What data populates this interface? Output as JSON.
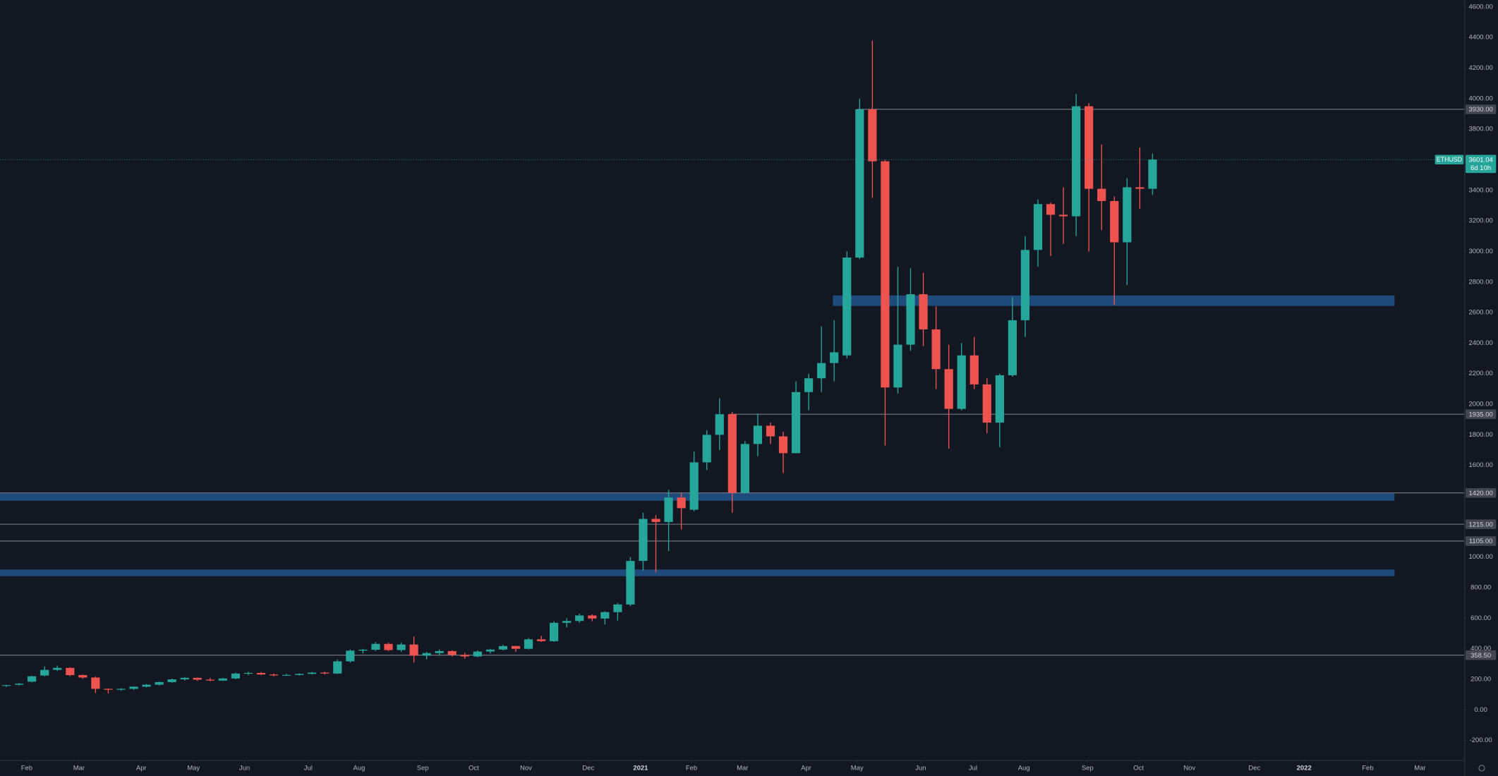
{
  "chart_data": {
    "type": "candlestick",
    "symbol": "ETHUSD",
    "countdown": "6d 10h",
    "up_color": "#26a69a",
    "down_color": "#ef5350",
    "zone_color": "#1f4a7c",
    "open": [
      158,
      165,
      185,
      225,
      262,
      275,
      228,
      212,
      138,
      132,
      138,
      152,
      165,
      182,
      200,
      210,
      198,
      192,
      206,
      238,
      242,
      232,
      226,
      229,
      236,
      244,
      238,
      318,
      388,
      394,
      432,
      392,
      428,
      355,
      372,
      385,
      360,
      350,
      382,
      395,
      418,
      400,
      462,
      450,
      570,
      582,
      618,
      598,
      640,
      690,
      975,
      1250,
      1230,
      1390,
      1310,
      1620,
      1800,
      1935,
      1420,
      1740,
      1860,
      1790,
      1680,
      2080,
      2170,
      2270,
      2320,
      2960,
      3930,
      3590,
      2110,
      2390,
      2720,
      2490,
      2230,
      1970,
      2320,
      2130,
      1880,
      2190,
      2550,
      3010,
      3310,
      3240,
      3230,
      3950,
      3410,
      3330,
      3060,
      3420,
      3410
    ],
    "high": [
      165,
      175,
      225,
      285,
      290,
      280,
      232,
      218,
      140,
      142,
      155,
      170,
      185,
      205,
      215,
      212,
      210,
      210,
      245,
      250,
      248,
      238,
      236,
      240,
      248,
      250,
      330,
      395,
      400,
      445,
      440,
      440,
      480,
      380,
      395,
      390,
      375,
      390,
      400,
      425,
      420,
      470,
      485,
      580,
      600,
      630,
      625,
      645,
      700,
      1000,
      1290,
      1275,
      1440,
      1420,
      1690,
      1830,
      2040,
      1950,
      1760,
      1940,
      1880,
      1820,
      2150,
      2200,
      2510,
      2550,
      3000,
      4000,
      4380,
      3600,
      2900,
      2890,
      2860,
      2640,
      2390,
      2400,
      2440,
      2170,
      2200,
      2700,
      3100,
      3340,
      3320,
      3420,
      4030,
      3970,
      3700,
      3360,
      3480,
      3680,
      3640
    ],
    "low": [
      150,
      160,
      180,
      220,
      255,
      220,
      205,
      110,
      108,
      125,
      132,
      148,
      160,
      178,
      192,
      190,
      188,
      190,
      200,
      228,
      228,
      220,
      222,
      225,
      232,
      232,
      235,
      310,
      370,
      385,
      385,
      380,
      310,
      330,
      355,
      350,
      335,
      345,
      370,
      390,
      380,
      395,
      445,
      445,
      540,
      570,
      580,
      560,
      585,
      680,
      910,
      900,
      1040,
      1180,
      1300,
      1570,
      1700,
      1290,
      1420,
      1660,
      1740,
      1550,
      1680,
      1960,
      2080,
      2150,
      2300,
      2950,
      3350,
      1730,
      2070,
      2350,
      2380,
      2100,
      1710,
      1960,
      2100,
      1810,
      1720,
      2180,
      2440,
      2900,
      2970,
      3050,
      3100,
      3000,
      3140,
      2650,
      2780,
      3280,
      3370
    ],
    "close": [
      162,
      172,
      220,
      262,
      275,
      228,
      212,
      138,
      132,
      138,
      152,
      165,
      182,
      200,
      210,
      198,
      192,
      206,
      238,
      242,
      232,
      226,
      229,
      236,
      244,
      238,
      318,
      388,
      394,
      432,
      392,
      428,
      355,
      372,
      385,
      360,
      350,
      382,
      395,
      418,
      400,
      462,
      450,
      570,
      582,
      618,
      598,
      640,
      690,
      975,
      1250,
      1230,
      1390,
      1320,
      1620,
      1800,
      1935,
      1420,
      1740,
      1860,
      1790,
      1680,
      2080,
      2170,
      2270,
      2340,
      2960,
      3930,
      3590,
      2110,
      2390,
      2720,
      2490,
      2230,
      1970,
      2320,
      2130,
      1880,
      2190,
      2550,
      3010,
      3310,
      3240,
      3230,
      3950,
      3410,
      3330,
      3060,
      3420,
      3410,
      3601.04
    ],
    "xlim": [
      -0.5,
      114.5
    ],
    "xticks": [
      {
        "value": 1.6,
        "label": "Feb"
      },
      {
        "value": 5.7,
        "label": "Mar"
      },
      {
        "value": 10.6,
        "label": "Apr"
      },
      {
        "value": 14.7,
        "label": "May"
      },
      {
        "value": 18.7,
        "label": "Jun"
      },
      {
        "value": 23.7,
        "label": "Jul"
      },
      {
        "value": 27.7,
        "label": "Aug"
      },
      {
        "value": 32.7,
        "label": "Sep"
      },
      {
        "value": 36.7,
        "label": "Oct"
      },
      {
        "value": 40.8,
        "label": "Nov"
      },
      {
        "value": 45.7,
        "label": "Dec"
      },
      {
        "value": 49.8,
        "label": "2021"
      },
      {
        "value": 53.8,
        "label": "Feb"
      },
      {
        "value": 57.8,
        "label": "Mar"
      },
      {
        "value": 62.8,
        "label": "Apr"
      },
      {
        "value": 66.8,
        "label": "May"
      },
      {
        "value": 71.8,
        "label": "Jun"
      },
      {
        "value": 75.9,
        "label": "Jul"
      },
      {
        "value": 79.9,
        "label": "Aug"
      },
      {
        "value": 84.9,
        "label": "Sep"
      },
      {
        "value": 88.9,
        "label": "Oct"
      },
      {
        "value": 92.9,
        "label": "Nov"
      },
      {
        "value": 98.0,
        "label": "Dec"
      },
      {
        "value": 101.9,
        "label": "2022"
      },
      {
        "value": 106.9,
        "label": "Feb"
      },
      {
        "value": 111.0,
        "label": "Mar"
      }
    ],
    "ylim": [
      -331,
      4644
    ],
    "yticks": [
      {
        "value": -200,
        "label": "-200.00"
      },
      {
        "value": 0,
        "label": "0.00"
      },
      {
        "value": 200,
        "label": "200.00"
      },
      {
        "value": 400,
        "label": "400.00"
      },
      {
        "value": 600,
        "label": "600.00"
      },
      {
        "value": 800,
        "label": "800.00"
      },
      {
        "value": 1000,
        "label": "1000.00"
      },
      {
        "value": 1200,
        "label": "1200.00"
      },
      {
        "value": 1400,
        "label": "1400.00"
      },
      {
        "value": 1600,
        "label": "1600.00"
      },
      {
        "value": 1800,
        "label": "1800.00"
      },
      {
        "value": 2000,
        "label": "2000.00"
      },
      {
        "value": 2200,
        "label": "2200.00"
      },
      {
        "value": 2400,
        "label": "2400.00"
      },
      {
        "value": 2600,
        "label": "2600.00"
      },
      {
        "value": 2800,
        "label": "2800.00"
      },
      {
        "value": 3000,
        "label": "3000.00"
      },
      {
        "value": 3200,
        "label": "3200.00"
      },
      {
        "value": 3400,
        "label": "3400.00"
      },
      {
        "value": 3600,
        "label": "3600.00"
      },
      {
        "value": 3800,
        "label": "3800.00"
      },
      {
        "value": 4000,
        "label": "4000.00"
      },
      {
        "value": 4200,
        "label": "4200.00"
      },
      {
        "value": 4400,
        "label": "4400.00"
      },
      {
        "value": 4600,
        "label": "4600.00"
      }
    ],
    "levels": [
      {
        "value": 3930,
        "label": "3930.00",
        "from": 66.8
      },
      {
        "value": 1935,
        "label": "1935.00",
        "from": 56.8
      },
      {
        "value": 1420,
        "label": "1420.00"
      },
      {
        "value": 1215,
        "label": "1215.00"
      },
      {
        "value": 1105,
        "label": "1105.00"
      },
      {
        "value": 358.5,
        "label": "358.50"
      }
    ],
    "zones": [
      {
        "from": 2644,
        "to": 2712,
        "x_from": 64.9,
        "x_to": 109
      },
      {
        "from": 1369,
        "to": 1419,
        "x_from": -0.5,
        "x_to": 109
      },
      {
        "from": 875,
        "to": 919,
        "x_from": -0.5,
        "x_to": 109
      }
    ]
  }
}
